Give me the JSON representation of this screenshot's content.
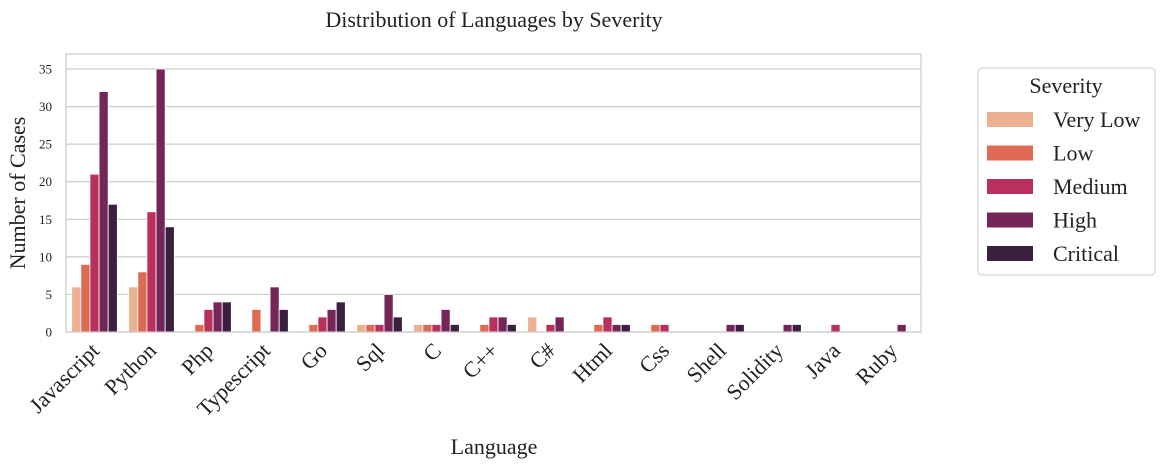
{
  "chart_data": {
    "type": "bar",
    "title": "Distribution of Languages by Severity",
    "xlabel": "Language",
    "ylabel": "Number of Cases",
    "ylim": [
      0,
      37
    ],
    "yticks": [
      0,
      5,
      10,
      15,
      20,
      25,
      30,
      35
    ],
    "grid": "horizontal",
    "legend_position": "outside-right",
    "legend_title": "Severity",
    "categories": [
      "Javascript",
      "Python",
      "Php",
      "Typescript",
      "Go",
      "Sql",
      "C",
      "C++",
      "C#",
      "Html",
      "Css",
      "Shell",
      "Solidity",
      "Java",
      "Ruby"
    ],
    "series": [
      {
        "name": "Very Low",
        "color": "#ebb090",
        "values": [
          6,
          6,
          0,
          0,
          0,
          1,
          1,
          0,
          2,
          0,
          0,
          0,
          0,
          0,
          0
        ]
      },
      {
        "name": "Low",
        "color": "#df6a54",
        "values": [
          9,
          8,
          1,
          3,
          1,
          1,
          1,
          1,
          0,
          1,
          1,
          0,
          0,
          0,
          0
        ]
      },
      {
        "name": "Medium",
        "color": "#b8305b",
        "values": [
          21,
          16,
          3,
          0,
          2,
          1,
          1,
          2,
          1,
          2,
          1,
          0,
          0,
          1,
          0
        ]
      },
      {
        "name": "High",
        "color": "#752658",
        "values": [
          32,
          35,
          4,
          6,
          3,
          5,
          3,
          2,
          2,
          1,
          0,
          1,
          1,
          0,
          1
        ]
      },
      {
        "name": "Critical",
        "color": "#3b1f3f",
        "values": [
          17,
          14,
          4,
          3,
          4,
          2,
          1,
          1,
          0,
          1,
          0,
          1,
          1,
          0,
          0
        ]
      }
    ]
  }
}
